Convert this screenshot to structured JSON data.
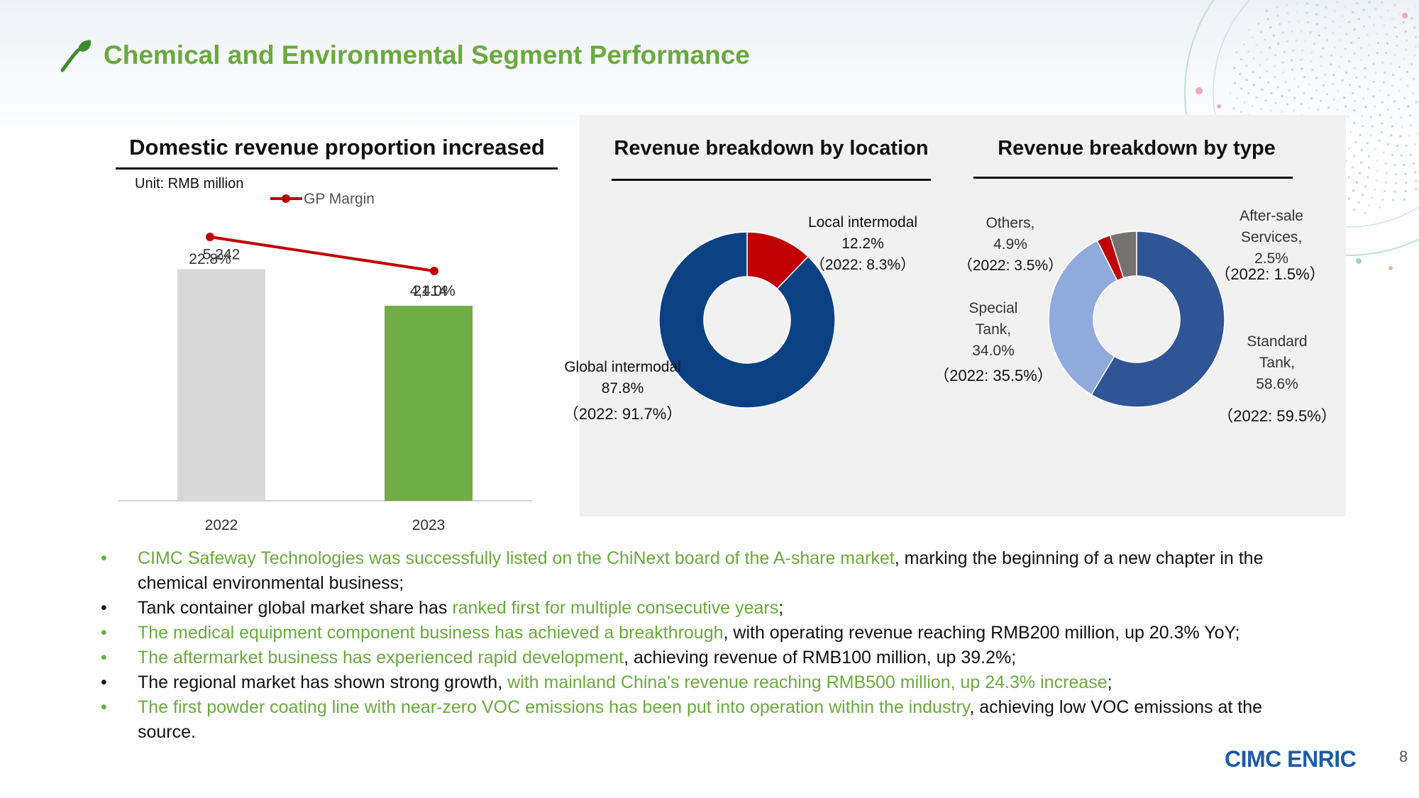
{
  "header": {
    "title": "Chemical and Environmental Segment Performance"
  },
  "left_chart": {
    "section_title": "Domestic revenue proportion increased",
    "unit": "Unit: RMB million"
  },
  "middle_chart": {
    "section_title": "Revenue breakdown by location"
  },
  "right_chart": {
    "section_title": "Revenue breakdown by type"
  },
  "chart_data": [
    {
      "type": "bar",
      "categories": [
        "2022",
        "2023"
      ],
      "values": [
        5242,
        4414
      ],
      "value_labels": [
        "5,242",
        "4,414"
      ],
      "bar_colors": [
        "#d9d9d9",
        "#70ad47"
      ],
      "line_series": {
        "name": "GP Margin",
        "values": [
          22.8,
          21.0
        ],
        "labels": [
          "22.8%",
          "21.0%"
        ],
        "color": "#c00000"
      },
      "legend": "top"
    },
    {
      "type": "pie",
      "style": "donut",
      "slices": [
        {
          "name": "Local intermodal",
          "value": 12.2,
          "pct_label": "12.2%",
          "prev_label": "（2022: 8.3%）",
          "color": "#c00000"
        },
        {
          "name": "Global intermodal",
          "value": 87.8,
          "pct_label": "87.8%",
          "prev_label": "（2022: 91.7%）",
          "color": "#0a4183"
        }
      ]
    },
    {
      "type": "pie",
      "style": "donut",
      "slices": [
        {
          "name": "Standard Tank,",
          "value": 58.6,
          "pct_label": "58.6%",
          "prev_label": "（2022: 59.5%）",
          "color": "#2f5597"
        },
        {
          "name": "Special Tank,",
          "value": 34.0,
          "pct_label": "34.0%",
          "prev_label": "（2022: 35.5%）",
          "color": "#8faadc"
        },
        {
          "name": "After-sale Services,",
          "value": 2.5,
          "pct_label": "2.5%",
          "prev_label": "（2022: 1.5%）",
          "color": "#c00000"
        },
        {
          "name": "Others,",
          "value": 4.9,
          "pct_label": "4.9%",
          "prev_label": "（2022: 3.5%）",
          "color": "#767171"
        }
      ]
    }
  ],
  "donut_labels": {
    "local_line1": "Local intermodal",
    "global_line1": "Global intermodal",
    "others_line1": "Others,",
    "special_line1": "Special",
    "special_line2": "Tank,",
    "aftersale_line1": "After-sale",
    "aftersale_line2": "Services,",
    "standard_line1": "Standard",
    "standard_line2": "Tank,"
  },
  "bullets": [
    {
      "color": "green",
      "parts": [
        {
          "text": "CIMC Safeway Technologies was successfully listed on the ChiNext board of the A-share market",
          "hl": true
        },
        {
          "text": ", marking the beginning of a new chapter in the chemical environmental business;",
          "hl": false
        }
      ]
    },
    {
      "color": "black",
      "parts": [
        {
          "text": "Tank container global market share has ",
          "hl": false
        },
        {
          "text": "ranked first for multiple consecutive years",
          "hl": true
        },
        {
          "text": ";",
          "hl": false
        }
      ]
    },
    {
      "color": "green",
      "parts": [
        {
          "text": "The medical equipment component business has achieved a breakthrough",
          "hl": true
        },
        {
          "text": ", with operating revenue reaching RMB200 million, up 20.3% YoY;",
          "hl": false
        }
      ]
    },
    {
      "color": "green",
      "parts": [
        {
          "text": "The aftermarket business has experienced rapid development",
          "hl": true
        },
        {
          "text": ", achieving revenue of RMB100 million, up 39.2%;",
          "hl": false
        }
      ]
    },
    {
      "color": "black",
      "parts": [
        {
          "text": "The regional market has shown strong growth, ",
          "hl": false
        },
        {
          "text": "with mainland China's revenue reaching RMB500 million, up 24.3% increase",
          "hl": true
        },
        {
          "text": ";",
          "hl": false
        }
      ]
    },
    {
      "color": "green",
      "parts": [
        {
          "text": "The first powder coating line with near-zero VOC emissions has been put into operation within the industry",
          "hl": true
        },
        {
          "text": ", achieving low VOC emissions at the source.",
          "hl": false
        }
      ]
    }
  ],
  "footer": {
    "logo": "CIMC ENRIC",
    "page_number": "8"
  }
}
